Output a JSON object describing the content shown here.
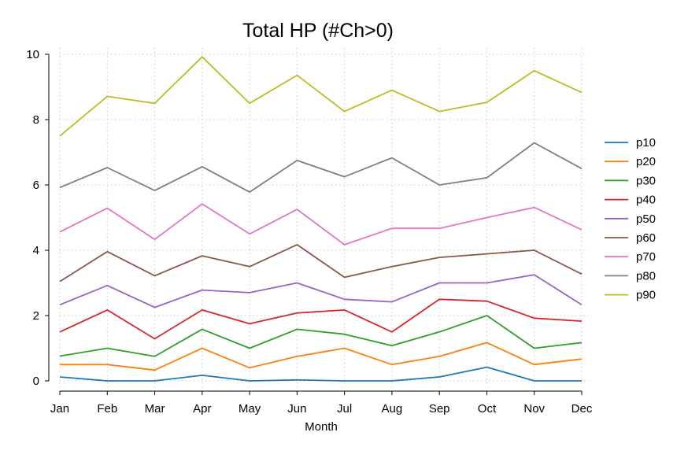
{
  "chart_data": {
    "type": "line",
    "title": "Total HP (#Ch>0)",
    "xlabel": "Month",
    "ylabel": "",
    "categories": [
      "Jan",
      "Feb",
      "Mar",
      "Apr",
      "May",
      "Jun",
      "Jul",
      "Aug",
      "Sep",
      "Oct",
      "Nov",
      "Dec"
    ],
    "ylim": [
      0,
      10
    ],
    "yticks": [
      0,
      2,
      4,
      6,
      8,
      10
    ],
    "grid": true,
    "legend_position": "right",
    "series": [
      {
        "name": "p10",
        "color": "#1f77b4",
        "values": [
          0.12,
          0.0,
          0.0,
          0.17,
          0.0,
          0.03,
          0.0,
          0.0,
          0.12,
          0.42,
          0.0,
          0.0
        ]
      },
      {
        "name": "p20",
        "color": "#ff7f0e",
        "values": [
          0.5,
          0.5,
          0.33,
          1.0,
          0.4,
          0.75,
          1.0,
          0.5,
          0.75,
          1.17,
          0.5,
          0.67
        ]
      },
      {
        "name": "p30",
        "color": "#2ca02c",
        "values": [
          0.76,
          1.0,
          0.75,
          1.58,
          1.0,
          1.58,
          1.43,
          1.08,
          1.5,
          2.0,
          1.0,
          1.17
        ]
      },
      {
        "name": "p40",
        "color": "#d62728",
        "values": [
          1.5,
          2.17,
          1.29,
          2.17,
          1.75,
          2.08,
          2.17,
          1.5,
          2.5,
          2.44,
          1.92,
          1.83
        ]
      },
      {
        "name": "p50",
        "color": "#9467bd",
        "values": [
          2.33,
          2.92,
          2.25,
          2.78,
          2.7,
          3.0,
          2.5,
          2.42,
          3.0,
          3.0,
          3.25,
          2.33
        ]
      },
      {
        "name": "p60",
        "color": "#8c564b",
        "values": [
          3.04,
          3.96,
          3.22,
          3.83,
          3.5,
          4.17,
          3.17,
          3.5,
          3.78,
          3.89,
          4.0,
          3.27
        ]
      },
      {
        "name": "p70",
        "color": "#e377c2",
        "values": [
          4.56,
          5.29,
          4.33,
          5.42,
          4.5,
          5.25,
          4.17,
          4.67,
          4.67,
          5.0,
          5.31,
          4.63
        ]
      },
      {
        "name": "p80",
        "color": "#7f7f7f",
        "values": [
          5.92,
          6.53,
          5.83,
          6.56,
          5.78,
          6.75,
          6.25,
          6.83,
          6.0,
          6.22,
          7.29,
          6.5
        ]
      },
      {
        "name": "p90",
        "color": "#bcbd22",
        "values": [
          7.5,
          8.71,
          8.5,
          9.92,
          8.5,
          9.36,
          8.25,
          8.9,
          8.25,
          8.53,
          9.5,
          8.83
        ]
      }
    ]
  }
}
